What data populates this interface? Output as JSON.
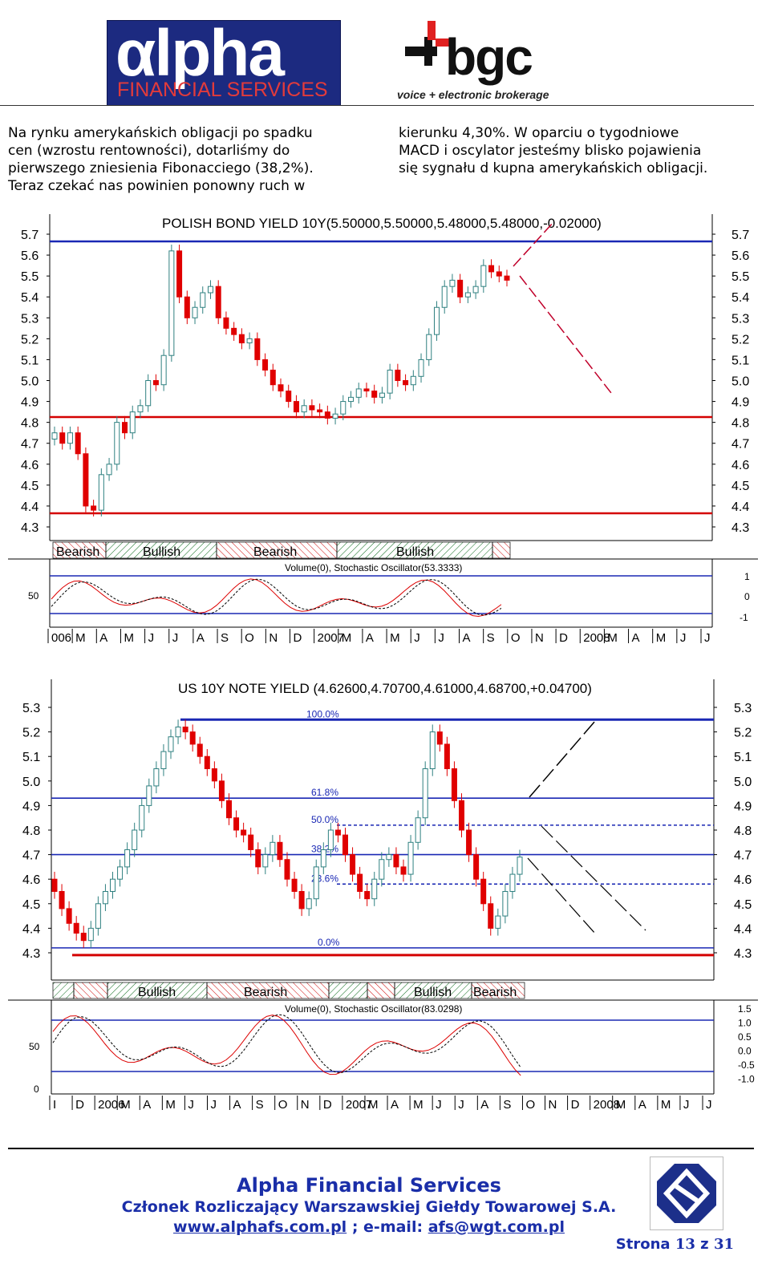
{
  "header": {
    "alpha_logo": {
      "word": "lpha",
      "sub": "FINANCIAL SERVICES",
      "glyph": "α"
    },
    "bgc_logo": {
      "word": "bgc",
      "tagline": "voice + electronic brokerage"
    }
  },
  "body_text": {
    "col1": [
      "Na rynku amerykańskich obligacji po spadku",
      "cen (wzrostu rentowności), dotarliśmy do",
      "pierwszego zniesienia Fibonacciego (38,2%).",
      "Teraz czekać nas powinien ponowny ruch w"
    ],
    "col2": [
      "kierunku 4,30%. W oparciu o tygodniowe",
      "MACD i oscylator jesteśmy blisko pojawienia",
      "się sygnału d kupna amerykańskich obligacji."
    ]
  },
  "charts": {
    "polish": {
      "title": "POLISH BOND YIELD 10Y(5.50000,5.50000,5.48000,5.48000,-0.02000)",
      "y_ticks": [
        "5.7",
        "5.6",
        "5.5",
        "5.4",
        "5.3",
        "5.2",
        "5.1",
        "5.0",
        "4.9",
        "4.8",
        "4.7",
        "4.6",
        "4.5",
        "4.4",
        "4.3"
      ],
      "bands": [
        "Bearish",
        "Bullish",
        "Bearish",
        "Bullish"
      ],
      "osc_title": "Volume(0), Stochastic Oscillator(53.3333)",
      "osc_left_tick": "50",
      "osc_right_ticks": [
        "1",
        "0",
        "-1"
      ],
      "x_labels": [
        "006",
        "M",
        "A",
        "M",
        "J",
        "J",
        "A",
        "S",
        "O",
        "N",
        "D",
        "2007",
        "M",
        "A",
        "M",
        "J",
        "J",
        "A",
        "S",
        "O",
        "N",
        "D",
        "2008",
        "M",
        "A",
        "M",
        "J",
        "J"
      ]
    },
    "us": {
      "title": "US 10Y NOTE YIELD (4.62600,4.70700,4.61000,4.68700,+0.04700)",
      "y_ticks": [
        "5.3",
        "5.2",
        "5.1",
        "5.0",
        "4.9",
        "4.8",
        "4.7",
        "4.6",
        "4.5",
        "4.4",
        "4.3"
      ],
      "fib_labels": [
        "100.0%",
        "61.8%",
        "50.0%",
        "38.2%",
        "23.6%",
        "0.0%"
      ],
      "bands": [
        "Bullish",
        "Bearish",
        "Bullish",
        "Bearish"
      ],
      "osc_title": "Volume(0), Stochastic Oscillator(83.0298)",
      "osc_left_ticks": [
        "50",
        "0"
      ],
      "osc_right_ticks": [
        "1.5",
        "1.0",
        "0.5",
        "0.0",
        "-0.5",
        "-1.0"
      ],
      "x_labels": [
        "I",
        "D",
        "2006",
        "M",
        "A",
        "M",
        "J",
        "J",
        "A",
        "S",
        "O",
        "N",
        "D",
        "2007",
        "M",
        "A",
        "M",
        "J",
        "J",
        "A",
        "S",
        "O",
        "N",
        "D",
        "2008",
        "M",
        "A",
        "M",
        "J",
        "J"
      ]
    }
  },
  "footer": {
    "company": "Alpha Financial Services",
    "member": "Członek Rozliczający Warszawskiej Giełdy Towarowej S.A.",
    "website": "www.alphafs.com.pl",
    "email_sep": "; e-mail:",
    "email": "afs@wgt.com.pl",
    "page_prefix": "Strona",
    "page_num": "13",
    "page_of": "z",
    "page_total": "31"
  },
  "colors": {
    "bear": "#e00000",
    "bull": "#2f8080",
    "level_blue": "#1a28b4",
    "level_red": "#d40000",
    "footer_blue": "#1a2ea8"
  },
  "chart_data": [
    {
      "type": "candlestick",
      "title": "POLISH BOND YIELD 10Y(5.50000,5.50000,5.48000,5.48000,-0.02000)",
      "ylim": [
        4.25,
        5.78
      ],
      "horizontal_levels": [
        5.65,
        4.78,
        4.35
      ],
      "projection": "down",
      "closes": [
        4.75,
        4.7,
        4.75,
        4.65,
        4.4,
        4.38,
        4.55,
        4.6,
        4.8,
        4.75,
        4.85,
        4.88,
        5.0,
        4.98,
        5.12,
        5.62,
        5.4,
        5.3,
        5.35,
        5.42,
        5.45,
        5.3,
        5.25,
        5.22,
        5.18,
        5.2,
        5.1,
        5.05,
        4.98,
        4.95,
        4.9,
        4.85,
        4.88,
        4.86,
        4.85,
        4.82,
        4.84,
        4.9,
        4.92,
        4.96,
        4.95,
        4.92,
        4.94,
        5.05,
        5.0,
        4.98,
        5.02,
        5.1,
        5.22,
        5.35,
        5.45,
        5.48,
        5.4,
        5.42,
        5.45,
        5.55,
        5.52,
        5.5,
        5.48
      ]
    },
    {
      "type": "candlestick",
      "title": "US 10Y NOTE YIELD (4.62600,4.70700,4.61000,4.68700,+0.04700)",
      "ylim": [
        4.26,
        5.36
      ],
      "fib_levels": [
        {
          "label": "100.0%",
          "value": 5.25
        },
        {
          "label": "61.8%",
          "value": 4.93
        },
        {
          "label": "50.0%",
          "value": 4.82
        },
        {
          "label": "38.2%",
          "value": 4.7
        },
        {
          "label": "23.6%",
          "value": 4.58
        },
        {
          "label": "0.0%",
          "value": 4.32
        }
      ],
      "projection": "up-or-down",
      "closes": [
        4.55,
        4.48,
        4.42,
        4.38,
        4.35,
        4.4,
        4.5,
        4.55,
        4.6,
        4.65,
        4.72,
        4.8,
        4.9,
        4.98,
        5.05,
        5.12,
        5.18,
        5.22,
        5.2,
        5.15,
        5.1,
        5.05,
        5.0,
        4.92,
        4.85,
        4.8,
        4.78,
        4.72,
        4.65,
        4.7,
        4.75,
        4.68,
        4.6,
        4.55,
        4.48,
        4.52,
        4.65,
        4.72,
        4.8,
        4.78,
        4.7,
        4.62,
        4.55,
        4.52,
        4.6,
        4.68,
        4.7,
        4.65,
        4.62,
        4.75,
        4.85,
        5.05,
        5.2,
        5.15,
        5.05,
        4.92,
        4.8,
        4.7,
        4.6,
        4.5,
        4.4,
        4.45,
        4.55,
        4.62,
        4.69
      ]
    }
  ]
}
